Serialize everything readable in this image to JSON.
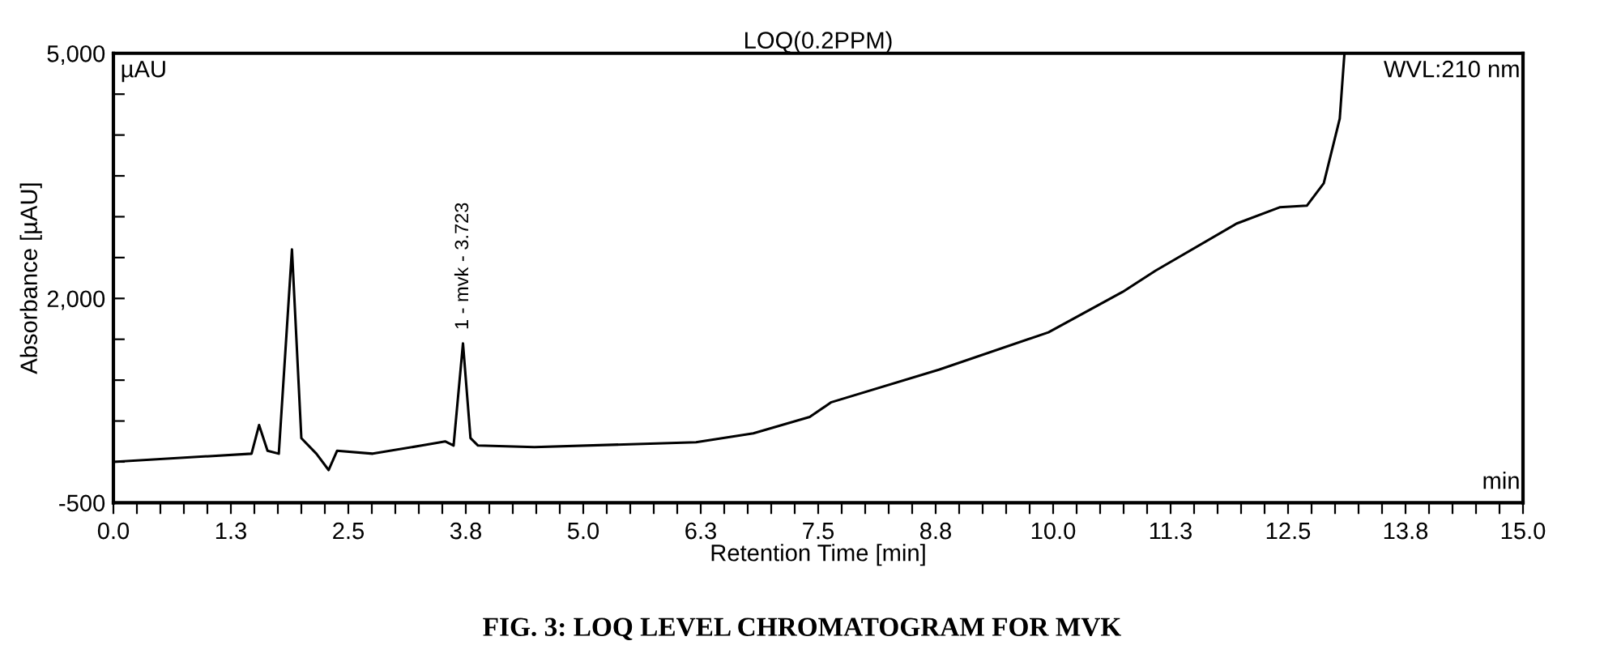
{
  "chart_data": {
    "type": "line",
    "title": "LOQ(0.2PPM)",
    "xlabel": "Retention Time [min]",
    "ylabel": "Absorbance [µAU]",
    "x": [
      0.0,
      1.47,
      1.55,
      1.64,
      1.76,
      1.9,
      2.0,
      2.16,
      2.29,
      2.38,
      2.76,
      3.28,
      3.53,
      3.62,
      3.72,
      3.8,
      3.88,
      4.48,
      6.2,
      6.81,
      7.41,
      7.64,
      8.79,
      9.95,
      10.74,
      11.09,
      11.95,
      12.41,
      12.7,
      12.88,
      13.05,
      13.1
    ],
    "series": [
      {
        "color": "#000000",
        "values": [
          0,
          100,
          450,
          135,
          100,
          2600,
          290,
          100,
          -100,
          135,
          100,
          200,
          250,
          200,
          1450,
          290,
          200,
          180,
          240,
          350,
          550,
          730,
          1130,
          1585,
          2080,
          2340,
          2915,
          3115,
          3135,
          3410,
          4200,
          5000
        ]
      }
    ],
    "xlim": [
      0,
      15
    ],
    "ylim": [
      -500,
      5000
    ],
    "xticks": [
      {
        "value": 0,
        "label": "0.0"
      },
      {
        "value": 0.25,
        "label": null
      },
      {
        "value": 0.5,
        "label": null
      },
      {
        "value": 0.75,
        "label": null
      },
      {
        "value": 1.0,
        "label": null
      },
      {
        "value": 1.25,
        "label": "1.3"
      },
      {
        "value": 1.5,
        "label": null
      },
      {
        "value": 1.75,
        "label": null
      },
      {
        "value": 2.0,
        "label": null
      },
      {
        "value": 2.25,
        "label": null
      },
      {
        "value": 2.5,
        "label": "2.5"
      },
      {
        "value": 2.75,
        "label": null
      },
      {
        "value": 3.0,
        "label": null
      },
      {
        "value": 3.25,
        "label": null
      },
      {
        "value": 3.5,
        "label": null
      },
      {
        "value": 3.75,
        "label": "3.8"
      },
      {
        "value": 4.0,
        "label": null
      },
      {
        "value": 4.25,
        "label": null
      },
      {
        "value": 4.5,
        "label": null
      },
      {
        "value": 4.75,
        "label": null
      },
      {
        "value": 5.0,
        "label": "5.0"
      },
      {
        "value": 5.25,
        "label": null
      },
      {
        "value": 5.5,
        "label": null
      },
      {
        "value": 5.75,
        "label": null
      },
      {
        "value": 6.0,
        "label": null
      },
      {
        "value": 6.25,
        "label": "6.3"
      },
      {
        "value": 6.5,
        "label": null
      },
      {
        "value": 6.75,
        "label": null
      },
      {
        "value": 7.0,
        "label": null
      },
      {
        "value": 7.25,
        "label": null
      },
      {
        "value": 7.5,
        "label": "7.5"
      },
      {
        "value": 7.75,
        "label": null
      },
      {
        "value": 8.0,
        "label": null
      },
      {
        "value": 8.25,
        "label": null
      },
      {
        "value": 8.5,
        "label": null
      },
      {
        "value": 8.75,
        "label": "8.8"
      },
      {
        "value": 9.0,
        "label": null
      },
      {
        "value": 9.25,
        "label": null
      },
      {
        "value": 9.5,
        "label": null
      },
      {
        "value": 9.75,
        "label": null
      },
      {
        "value": 10.0,
        "label": "10.0"
      },
      {
        "value": 10.25,
        "label": null
      },
      {
        "value": 10.5,
        "label": null
      },
      {
        "value": 10.75,
        "label": null
      },
      {
        "value": 11.0,
        "label": null
      },
      {
        "value": 11.25,
        "label": "11.3"
      },
      {
        "value": 11.5,
        "label": null
      },
      {
        "value": 11.75,
        "label": null
      },
      {
        "value": 12.0,
        "label": null
      },
      {
        "value": 12.25,
        "label": null
      },
      {
        "value": 12.5,
        "label": "12.5"
      },
      {
        "value": 12.75,
        "label": null
      },
      {
        "value": 13.0,
        "label": null
      },
      {
        "value": 13.25,
        "label": null
      },
      {
        "value": 13.5,
        "label": null
      },
      {
        "value": 13.75,
        "label": "13.8"
      },
      {
        "value": 14.0,
        "label": null
      },
      {
        "value": 14.25,
        "label": null
      },
      {
        "value": 14.5,
        "label": null
      },
      {
        "value": 14.75,
        "label": null
      },
      {
        "value": 15.0,
        "label": "15.0"
      }
    ],
    "yticks": [
      {
        "value": -500,
        "label": "-500"
      },
      {
        "value": 0,
        "label": null
      },
      {
        "value": 500,
        "label": null
      },
      {
        "value": 1000,
        "label": null
      },
      {
        "value": 1500,
        "label": null
      },
      {
        "value": 2000,
        "label": "2,000"
      },
      {
        "value": 2500,
        "label": null
      },
      {
        "value": 3000,
        "label": null
      },
      {
        "value": 3500,
        "label": null
      },
      {
        "value": 4000,
        "label": null
      },
      {
        "value": 4500,
        "label": null
      },
      {
        "value": 5000,
        "label": "5,000"
      }
    ],
    "annotations": [
      {
        "text": "1 - mvk - 3.723",
        "x": 3.723,
        "y": 1450
      },
      "µAU",
      "WVL:210 nm",
      "min",
      "FIG. 3: LOQ LEVEL CHROMATOGRAM FOR MVK"
    ],
    "grid": false,
    "marker": "none",
    "line_style": "solid"
  }
}
